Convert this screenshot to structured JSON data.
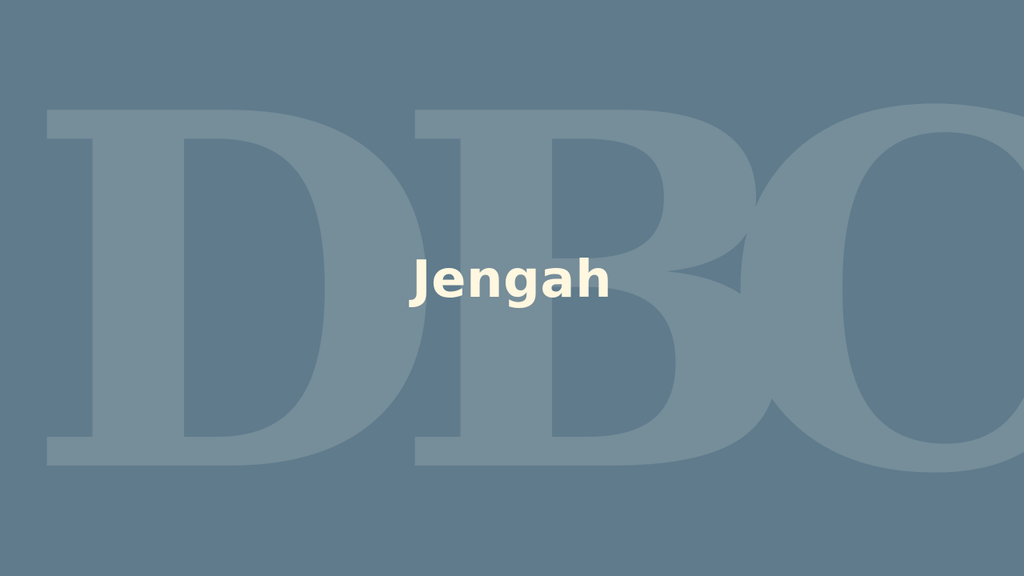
{
  "background": {
    "letters": [
      "D",
      "B",
      "C"
    ],
    "color": "#768d9a"
  },
  "title": {
    "text": "Jengah",
    "color": "#fff7df"
  },
  "colors": {
    "page_bg": "#5f7b8c"
  }
}
